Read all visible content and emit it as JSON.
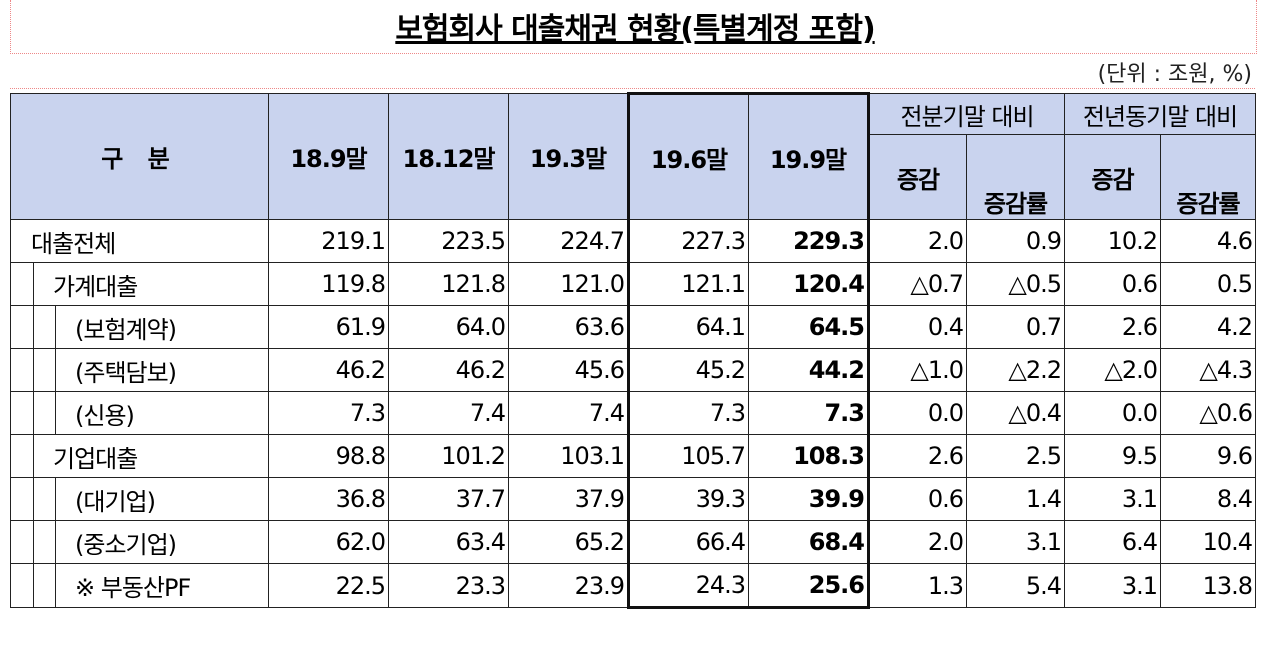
{
  "title": "보험회사 대출채권 현황(특별계정 포함)",
  "unit": "(단위 : 조원, %)",
  "table": {
    "header": {
      "label": "구 분",
      "periods": [
        "18.9말",
        "18.12말",
        "19.3말",
        "19.6말",
        "19.9말"
      ],
      "groups": [
        "전분기말 대비",
        "전년동기말 대비"
      ],
      "subcolumns": [
        "증감",
        "증감률",
        "증감",
        "증감률"
      ]
    },
    "rows": [
      {
        "label": "대출전체",
        "values": [
          "219.1",
          "223.5",
          "224.7",
          "227.3",
          "229.3",
          "2.0",
          "0.9",
          "10.2",
          "4.6"
        ]
      },
      {
        "label": "가계대출",
        "values": [
          "119.8",
          "121.8",
          "121.0",
          "121.1",
          "120.4",
          "△0.7",
          "△0.5",
          "0.6",
          "0.5"
        ]
      },
      {
        "label": "(보험계약)",
        "values": [
          "61.9",
          "64.0",
          "63.6",
          "64.1",
          "64.5",
          "0.4",
          "0.7",
          "2.6",
          "4.2"
        ]
      },
      {
        "label": "(주택담보)",
        "values": [
          "46.2",
          "46.2",
          "45.6",
          "45.2",
          "44.2",
          "△1.0",
          "△2.2",
          "△2.0",
          "△4.3"
        ]
      },
      {
        "label": "(신용)",
        "values": [
          "7.3",
          "7.4",
          "7.4",
          "7.3",
          "7.3",
          "0.0",
          "△0.4",
          "0.0",
          "△0.6"
        ]
      },
      {
        "label": "기업대출",
        "values": [
          "98.8",
          "101.2",
          "103.1",
          "105.7",
          "108.3",
          "2.6",
          "2.5",
          "9.5",
          "9.6"
        ]
      },
      {
        "label": "(대기업)",
        "values": [
          "36.8",
          "37.7",
          "37.9",
          "39.3",
          "39.9",
          "0.6",
          "1.4",
          "3.1",
          "8.4"
        ]
      },
      {
        "label": "(중소기업)",
        "values": [
          "62.0",
          "63.4",
          "65.2",
          "66.4",
          "68.4",
          "2.0",
          "3.1",
          "6.4",
          "10.4"
        ]
      },
      {
        "label": "※ 부동산PF",
        "values": [
          "22.5",
          "23.3",
          "23.9",
          "24.3",
          "25.6",
          "1.3",
          "5.4",
          "3.1",
          "13.8"
        ]
      }
    ]
  }
}
